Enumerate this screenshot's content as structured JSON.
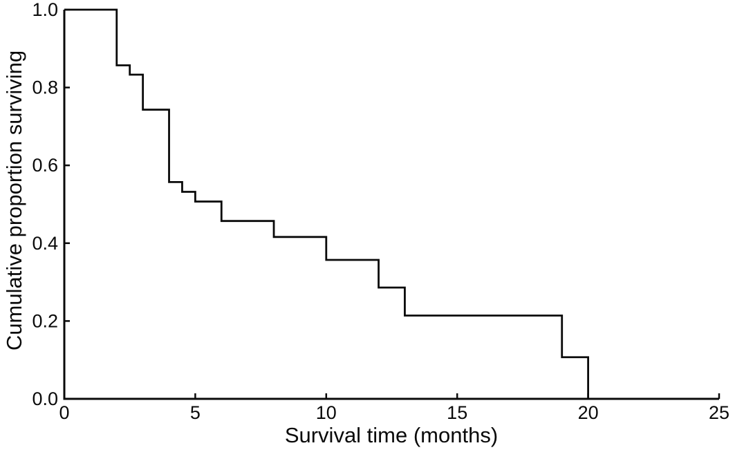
{
  "figure": {
    "background_color": "#ffffff",
    "line_color": "#0a0a0a"
  },
  "chart_data": {
    "type": "line",
    "subtype": "step-function-survival-curve",
    "title": "",
    "xlabel": "Survival time (months)",
    "ylabel": "Cumulative proportion surviving",
    "xlim": [
      0,
      25
    ],
    "ylim": [
      0.0,
      1.0
    ],
    "grid": false,
    "legend": "none",
    "xticks": [
      0,
      5,
      10,
      15,
      20,
      25
    ],
    "xtick_labels": [
      "0",
      "5",
      "10",
      "15",
      "20",
      "25"
    ],
    "yticks": [
      0.0,
      0.2,
      0.4,
      0.6,
      0.8,
      1.0
    ],
    "ytick_labels": [
      "0.0",
      "0.2",
      "0.4",
      "0.6",
      "0.8",
      "1.0"
    ],
    "series": [
      {
        "name": "cumulative-proportion-surviving",
        "style": "step-post",
        "color": "#0a0a0a",
        "points": [
          {
            "time": 0,
            "survival": 1.0
          },
          {
            "time": 2,
            "survival": 0.857
          },
          {
            "time": 2.5,
            "survival": 0.833
          },
          {
            "time": 3,
            "survival": 0.743
          },
          {
            "time": 4,
            "survival": 0.557
          },
          {
            "time": 4.5,
            "survival": 0.532
          },
          {
            "time": 5,
            "survival": 0.507
          },
          {
            "time": 6,
            "survival": 0.457
          },
          {
            "time": 8,
            "survival": 0.416
          },
          {
            "time": 10,
            "survival": 0.357
          },
          {
            "time": 12,
            "survival": 0.286
          },
          {
            "time": 13,
            "survival": 0.214
          },
          {
            "time": 19,
            "survival": 0.107
          },
          {
            "time": 20,
            "survival": 0.0
          }
        ]
      }
    ]
  }
}
